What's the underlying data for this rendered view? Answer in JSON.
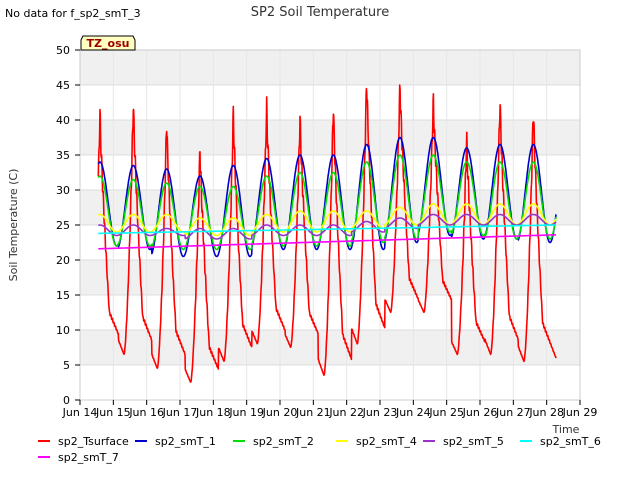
{
  "no_data_note": "No data for f_sp2_smT_3",
  "chart_data": {
    "type": "line",
    "title": "SP2 Soil Temperature",
    "xlabel": "Time",
    "ylabel": "Soil Temperature (C)",
    "ylim": [
      0,
      50
    ],
    "xlim": [
      0,
      15
    ],
    "yticks": [
      0,
      5,
      10,
      15,
      20,
      25,
      30,
      35,
      40,
      45,
      50
    ],
    "xticks": [
      0,
      1,
      2,
      3,
      4,
      5,
      6,
      7,
      8,
      9,
      10,
      11,
      12,
      13,
      14,
      15
    ],
    "xtick_labels": [
      "Jun 14",
      "Jun 15",
      "Jun 16",
      "Jun 17",
      "Jun 18",
      "Jun 19",
      "Jun 20",
      "Jun 21",
      "Jun 22",
      "Jun 23",
      "Jun 24",
      "Jun 25",
      "Jun 26",
      "Jun 27",
      "Jun 28",
      "Jun 29"
    ],
    "site_badge": "TZ_osu",
    "x_start": 0.55,
    "x_end": 14.28,
    "day_peak_offset": 0.6,
    "series": [
      {
        "name": "sp2_Tsurface",
        "color": "#ff0000",
        "type": "daily",
        "maxs": [
          41,
          42.5,
          40,
          36,
          41,
          42,
          40.5,
          42.5,
          46,
          45,
          43,
          37.5,
          43,
          42
        ],
        "mins": [
          7.5,
          6.5,
          4.5,
          2.5,
          5.5,
          8,
          7.5,
          3.5,
          8,
          12.5,
          12.5,
          6.5,
          6.5,
          5.5
        ]
      },
      {
        "name": "sp2_smT_1",
        "color": "#0000cc",
        "type": "daily",
        "maxs": [
          34,
          33.5,
          33,
          32,
          33.5,
          34.5,
          35,
          35,
          36.5,
          37.5,
          37.5,
          36,
          36.5,
          36.5
        ],
        "mins": [
          22,
          21.5,
          20.5,
          20.5,
          20.5,
          21.5,
          21.5,
          21.5,
          21.5,
          22.5,
          23.5,
          23,
          23,
          22.5
        ]
      },
      {
        "name": "sp2_smT_2",
        "color": "#00dd00",
        "type": "daily",
        "maxs": [
          32,
          31.5,
          31,
          30.5,
          30.5,
          32,
          32.5,
          32.5,
          34,
          35,
          35,
          34,
          34,
          34
        ],
        "mins": [
          22,
          22,
          21.5,
          21.5,
          21.5,
          22,
          22,
          22,
          22.5,
          23,
          24,
          23.5,
          23,
          23
        ]
      },
      {
        "name": "sp2_smT_4",
        "color": "#ffff00",
        "type": "daily",
        "maxs": [
          26.5,
          26.5,
          26.5,
          26,
          26,
          26.5,
          27,
          27,
          27,
          27.5,
          28,
          28,
          28,
          28
        ],
        "mins": [
          24,
          24,
          24,
          23.5,
          23.5,
          24,
          24,
          24,
          24.5,
          25,
          25,
          25,
          25,
          25
        ]
      },
      {
        "name": "sp2_smT_5",
        "color": "#9933cc",
        "type": "daily",
        "maxs": [
          25,
          25,
          24.5,
          24.5,
          24.5,
          25,
          25,
          25,
          25.5,
          26,
          26.5,
          26.5,
          26.5,
          26.5
        ],
        "mins": [
          23.5,
          23.5,
          23.5,
          23,
          23,
          23.5,
          23.5,
          23.5,
          24,
          24.5,
          25,
          25,
          25,
          25
        ]
      },
      {
        "name": "sp2_smT_6",
        "color": "#00ffff",
        "type": "linear",
        "start": 23.8,
        "end": 25.0
      },
      {
        "name": "sp2_smT_7",
        "color": "#ff00ff",
        "type": "linear",
        "start": 21.6,
        "end": 23.6
      }
    ]
  }
}
